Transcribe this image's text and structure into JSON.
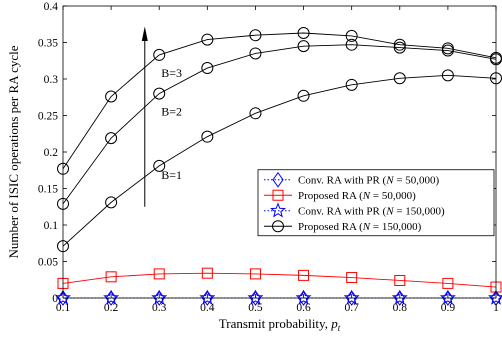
{
  "chart_data": {
    "type": "line",
    "xlabel_text": "Transmit probability, ",
    "xlabel_var": "p",
    "xlabel_sub": "t",
    "ylabel": "Number of ISIC operations per RA cycle",
    "xlim": [
      0.1,
      1.0
    ],
    "ylim": [
      0,
      0.4
    ],
    "x": [
      0.1,
      0.2,
      0.3,
      0.4,
      0.5,
      0.6,
      0.7,
      0.8,
      0.9,
      1.0
    ],
    "x_tick_labels": [
      "0.1",
      "0.2",
      "0.3",
      "0.4",
      "0.5",
      "0.6",
      "0.7",
      "0.8",
      "0.9",
      "1"
    ],
    "y_ticks": [
      0,
      0.05,
      0.1,
      0.15,
      0.2,
      0.25,
      0.3,
      0.35,
      0.4
    ],
    "y_tick_labels": [
      "0",
      "0.05",
      "0.1",
      "0.15",
      "0.2",
      "0.25",
      "0.3",
      "0.35",
      "0.4"
    ],
    "grid": false,
    "legend_position": "center-right",
    "series": [
      {
        "name": "Conv. RA with PR (N = 50,000)",
        "legend_pre": "Conv. RA with PR (",
        "legend_var": "N",
        "legend_post": " = 50,000)",
        "color": "#0000ff",
        "linestyle": "dotted",
        "marker": "diamond",
        "values": [
          0,
          0,
          0,
          0,
          0,
          0,
          0,
          0,
          0,
          0
        ]
      },
      {
        "name": "Proposed RA (N = 50,000)",
        "legend_pre": "Proposed RA (",
        "legend_var": "N",
        "legend_post": " = 50,000)",
        "color": "#ff0000",
        "linestyle": "solid",
        "marker": "square",
        "values": [
          0.02,
          0.029,
          0.033,
          0.034,
          0.033,
          0.031,
          0.028,
          0.024,
          0.02,
          0.015
        ]
      },
      {
        "name": "Conv. RA with PR (N = 150,000)",
        "legend_pre": "Conv. RA with PR (",
        "legend_var": "N",
        "legend_post": " = 150,000)",
        "color": "#0000ff",
        "linestyle": "dotted",
        "marker": "star",
        "values": [
          0,
          0,
          0,
          0,
          0,
          0,
          0,
          0,
          0,
          0
        ]
      },
      {
        "name": "Proposed RA (N = 150,000)",
        "legend_pre": "Proposed RA (",
        "legend_var": "N",
        "legend_post": " = 150,000)",
        "color": "#000000",
        "linestyle": "solid",
        "marker": "circle",
        "values": [
          0.071,
          0.131,
          0.181,
          0.221,
          0.253,
          0.277,
          0.292,
          0.301,
          0.305,
          0.301
        ]
      },
      {
        "name": "B=2",
        "in_legend": false,
        "color": "#000000",
        "linestyle": "solid",
        "marker": "circle",
        "values": [
          0.129,
          0.219,
          0.28,
          0.315,
          0.335,
          0.345,
          0.347,
          0.343,
          0.339,
          0.327
        ]
      },
      {
        "name": "B=3",
        "in_legend": false,
        "color": "#000000",
        "linestyle": "solid",
        "marker": "circle",
        "values": [
          0.177,
          0.276,
          0.333,
          0.354,
          0.36,
          0.363,
          0.359,
          0.347,
          0.342,
          0.329
        ]
      }
    ],
    "annotations": [
      "B=3",
      "B=2",
      "B=1"
    ]
  }
}
